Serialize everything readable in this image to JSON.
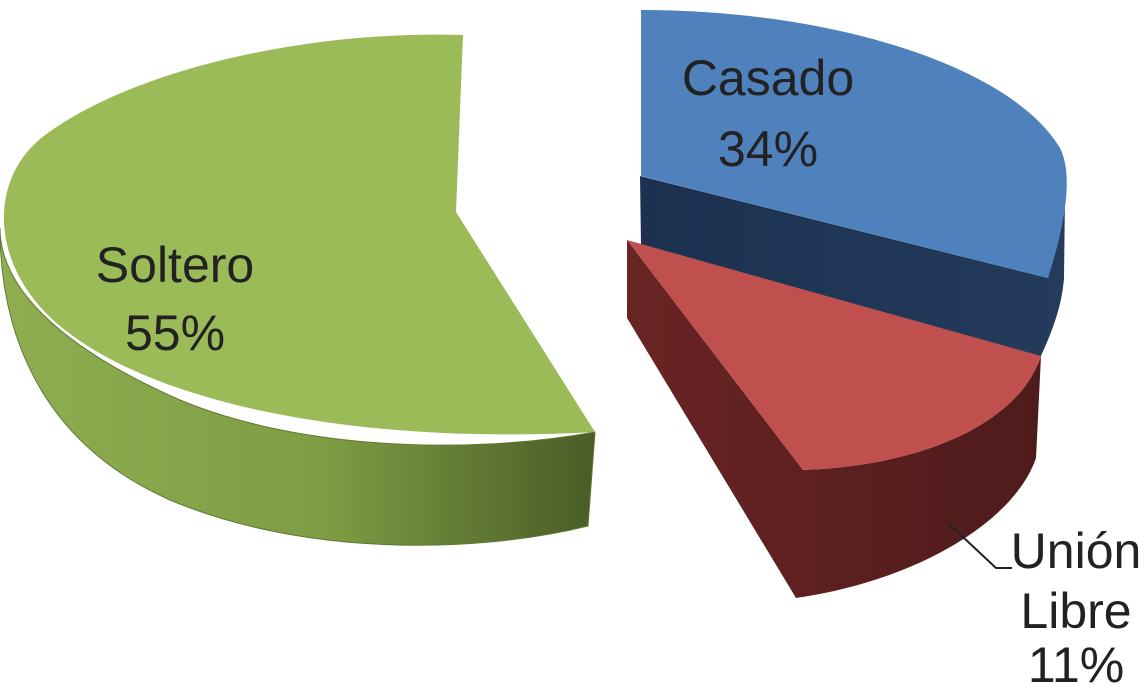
{
  "chart_data": {
    "type": "pie",
    "title": "",
    "categories": [
      "Soltero",
      "Casado",
      "Unión Libre"
    ],
    "values": [
      55,
      34,
      11
    ],
    "labels": [
      {
        "name_lines": [
          "Soltero"
        ],
        "pct": "55%"
      },
      {
        "name_lines": [
          "Casado"
        ],
        "pct": "34%"
      },
      {
        "name_lines": [
          "Unión",
          "Libre"
        ],
        "pct": "11%"
      }
    ],
    "colors": {
      "Soltero": {
        "top": "#9BBB59",
        "side_light": "#8BAA4C",
        "side_dark": "#4A5E27"
      },
      "Casado": {
        "top": "#4F81BD",
        "side": "#1F3552"
      },
      "Unión Libre": {
        "top": "#C0504D",
        "side": "#5A1F1F"
      }
    },
    "style": "3d-exploded",
    "legend": "none"
  }
}
